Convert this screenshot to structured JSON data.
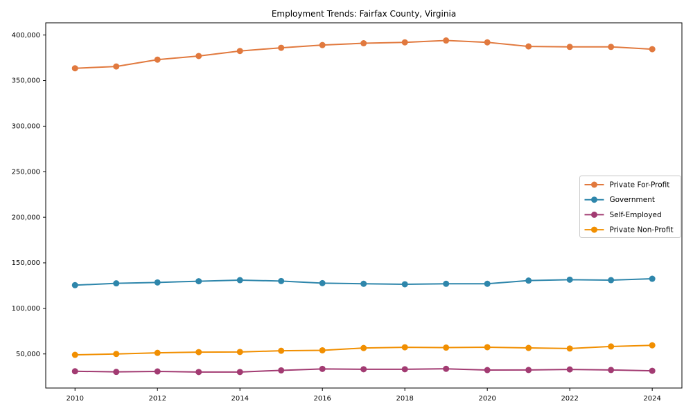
{
  "chart_data": {
    "type": "line",
    "title": "Employment Trends: Fairfax County, Virginia",
    "xlabel": "",
    "ylabel": "",
    "x": [
      2010,
      2011,
      2012,
      2013,
      2014,
      2015,
      2016,
      2017,
      2018,
      2019,
      2020,
      2021,
      2022,
      2023,
      2024
    ],
    "series": [
      {
        "name": "Private For-Profit",
        "color": "#E1793E",
        "values": [
          363500,
          365500,
          373000,
          377000,
          382500,
          386000,
          389000,
          391000,
          392000,
          394000,
          392000,
          387500,
          387000,
          387000,
          384500
        ]
      },
      {
        "name": "Government",
        "color": "#2E86AB",
        "values": [
          125500,
          127500,
          128500,
          129800,
          131000,
          130000,
          127700,
          127000,
          126500,
          127000,
          127000,
          130500,
          131500,
          131000,
          132500
        ]
      },
      {
        "name": "Self-Employed",
        "color": "#A23B72",
        "values": [
          31000,
          30300,
          30800,
          30200,
          30200,
          32000,
          33600,
          33200,
          33200,
          33700,
          32300,
          32400,
          33000,
          32400,
          31500
        ]
      },
      {
        "name": "Private Non-Profit",
        "color": "#F18F01",
        "values": [
          49000,
          50000,
          51200,
          52000,
          52200,
          53500,
          54000,
          56500,
          57300,
          57000,
          57400,
          56600,
          56000,
          58200,
          59500
        ]
      }
    ],
    "xticks": [
      2010,
      2012,
      2014,
      2016,
      2018,
      2020,
      2022,
      2024
    ],
    "yticks": [
      50000,
      100000,
      150000,
      200000,
      250000,
      300000,
      350000,
      400000
    ],
    "xlim": [
      2009.29,
      2024.72
    ],
    "ylim": [
      12600,
      413400
    ],
    "grid": false,
    "legend_position": "center-right",
    "axis_color": "#000000",
    "background_color": "#ffffff"
  }
}
